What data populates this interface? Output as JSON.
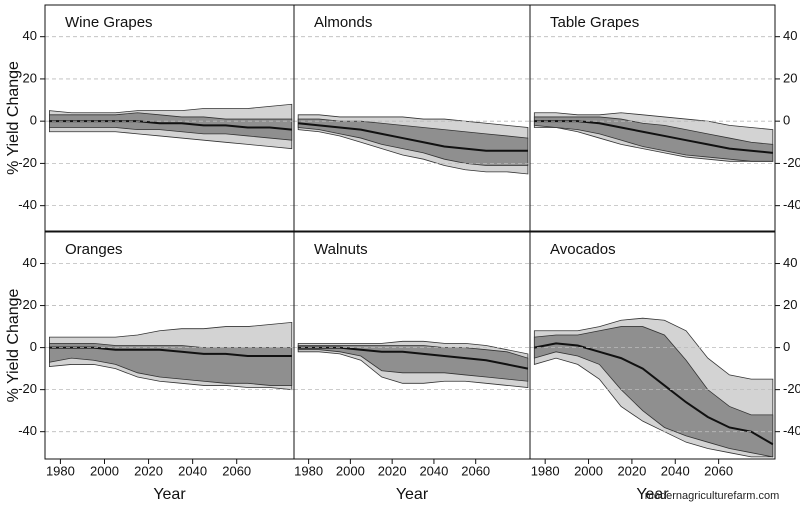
{
  "watermark": "modernagriculturefarm.com",
  "chart_data": [
    {
      "type": "line",
      "title": "Wine Grapes",
      "ylabel": "% Yield Change",
      "x": [
        1975,
        1985,
        1995,
        2005,
        2015,
        2025,
        2035,
        2045,
        2055,
        2065,
        2075,
        2085
      ],
      "xlim": [
        1973,
        2086
      ],
      "ylim": [
        -52,
        55
      ],
      "yticks": [
        -40,
        -20,
        0,
        20,
        40
      ],
      "grid": true,
      "bands": [
        {
          "color": "#d3d3d3",
          "lower": [
            -5,
            -5,
            -5,
            -5,
            -6,
            -7,
            -8,
            -9,
            -10,
            -11,
            -12,
            -13
          ],
          "upper": [
            5,
            4,
            4,
            4,
            5,
            5,
            5,
            6,
            6,
            6,
            7,
            8
          ]
        },
        {
          "color": "#8f8f8f",
          "lower": [
            -3,
            -3,
            -3,
            -3,
            -4,
            -4,
            -5,
            -6,
            -6,
            -7,
            -8,
            -9
          ],
          "upper": [
            3,
            3,
            3,
            3,
            4,
            3,
            2,
            2,
            1,
            1,
            1,
            1
          ]
        }
      ],
      "series": [
        {
          "color": "#111111",
          "values": [
            0,
            0,
            0,
            0,
            0,
            -1,
            -1,
            -2,
            -2,
            -3,
            -3,
            -4
          ]
        }
      ]
    },
    {
      "type": "line",
      "title": "Almonds",
      "x": [
        1975,
        1985,
        1995,
        2005,
        2015,
        2025,
        2035,
        2045,
        2055,
        2065,
        2075,
        2085
      ],
      "xlim": [
        1973,
        2086
      ],
      "ylim": [
        -52,
        55
      ],
      "yticks": [
        -40,
        -20,
        0,
        20,
        40
      ],
      "grid": true,
      "bands": [
        {
          "color": "#d3d3d3",
          "lower": [
            -4,
            -5,
            -7,
            -10,
            -13,
            -16,
            -18,
            -21,
            -23,
            -24,
            -24,
            -25
          ],
          "upper": [
            3,
            3,
            2,
            2,
            2,
            2,
            1,
            1,
            0,
            -1,
            -2,
            -3
          ]
        },
        {
          "color": "#8f8f8f",
          "lower": [
            -3,
            -4,
            -6,
            -8,
            -11,
            -13,
            -15,
            -18,
            -20,
            -21,
            -21,
            -21
          ],
          "upper": [
            1,
            1,
            0,
            0,
            -1,
            -2,
            -3,
            -4,
            -5,
            -6,
            -7,
            -8
          ]
        }
      ],
      "series": [
        {
          "color": "#111111",
          "values": [
            -1,
            -2,
            -3,
            -4,
            -6,
            -8,
            -10,
            -12,
            -13,
            -14,
            -14,
            -14
          ]
        }
      ]
    },
    {
      "type": "line",
      "title": "Table Grapes",
      "x": [
        1975,
        1985,
        1995,
        2005,
        2015,
        2025,
        2035,
        2045,
        2055,
        2065,
        2075,
        2085
      ],
      "xlim": [
        1973,
        2086
      ],
      "ylim": [
        -52,
        55
      ],
      "yticks": [
        -40,
        -20,
        0,
        20,
        40
      ],
      "grid": true,
      "bands": [
        {
          "color": "#d3d3d3",
          "lower": [
            -3,
            -3,
            -5,
            -8,
            -11,
            -13,
            -15,
            -17,
            -18,
            -19,
            -19,
            -19
          ],
          "upper": [
            4,
            4,
            3,
            3,
            4,
            3,
            2,
            1,
            0,
            -2,
            -3,
            -4
          ]
        },
        {
          "color": "#8f8f8f",
          "lower": [
            -2,
            -3,
            -4,
            -6,
            -9,
            -12,
            -14,
            -16,
            -17,
            -18,
            -19,
            -19
          ],
          "upper": [
            2,
            2,
            2,
            2,
            1,
            -1,
            -2,
            -4,
            -6,
            -8,
            -10,
            -11
          ]
        }
      ],
      "series": [
        {
          "color": "#111111",
          "values": [
            0,
            0,
            0,
            -1,
            -3,
            -5,
            -7,
            -9,
            -11,
            -13,
            -14,
            -15
          ]
        }
      ]
    },
    {
      "type": "line",
      "title": "Oranges",
      "ylabel": "% Yield Change",
      "xlabel": "Year",
      "x": [
        1975,
        1985,
        1995,
        2005,
        2015,
        2025,
        2035,
        2045,
        2055,
        2065,
        2075,
        2085
      ],
      "xlim": [
        1973,
        2086
      ],
      "xticks": [
        1980,
        2000,
        2020,
        2040,
        2060
      ],
      "ylim": [
        -53,
        55
      ],
      "yticks": [
        -40,
        -20,
        0,
        20,
        40
      ],
      "grid": true,
      "bands": [
        {
          "color": "#d3d3d3",
          "lower": [
            -9,
            -8,
            -8,
            -10,
            -14,
            -16,
            -17,
            -18,
            -18,
            -19,
            -19,
            -20
          ],
          "upper": [
            5,
            5,
            5,
            5,
            6,
            8,
            9,
            9,
            10,
            10,
            11,
            12
          ]
        },
        {
          "color": "#8f8f8f",
          "lower": [
            -7,
            -5,
            -6,
            -8,
            -12,
            -14,
            -15,
            -16,
            -17,
            -17,
            -18,
            -18
          ],
          "upper": [
            2,
            2,
            2,
            1,
            1,
            1,
            1,
            0,
            0,
            0,
            0,
            0
          ]
        }
      ],
      "series": [
        {
          "color": "#111111",
          "values": [
            0,
            0,
            0,
            -1,
            -1,
            -1,
            -2,
            -3,
            -3,
            -4,
            -4,
            -4
          ]
        }
      ]
    },
    {
      "type": "line",
      "title": "Walnuts",
      "xlabel": "Year",
      "x": [
        1975,
        1985,
        1995,
        2005,
        2015,
        2025,
        2035,
        2045,
        2055,
        2065,
        2075,
        2085
      ],
      "xlim": [
        1973,
        2086
      ],
      "xticks": [
        1980,
        2000,
        2020,
        2040,
        2060
      ],
      "ylim": [
        -53,
        55
      ],
      "yticks": [
        -40,
        -20,
        0,
        20,
        40
      ],
      "grid": true,
      "bands": [
        {
          "color": "#d3d3d3",
          "lower": [
            -2,
            -2,
            -3,
            -6,
            -14,
            -17,
            -17,
            -16,
            -16,
            -17,
            -18,
            -19
          ],
          "upper": [
            2,
            2,
            2,
            2,
            2,
            3,
            3,
            2,
            2,
            1,
            -1,
            -3
          ]
        },
        {
          "color": "#8f8f8f",
          "lower": [
            -1,
            -1,
            -2,
            -4,
            -11,
            -12,
            -12,
            -12,
            -13,
            -14,
            -15,
            -16
          ],
          "upper": [
            1,
            1,
            1,
            1,
            1,
            1,
            1,
            0,
            0,
            -1,
            -2,
            -5
          ]
        }
      ],
      "series": [
        {
          "color": "#111111",
          "values": [
            0,
            0,
            0,
            -1,
            -2,
            -2,
            -3,
            -4,
            -5,
            -6,
            -8,
            -10
          ]
        }
      ]
    },
    {
      "type": "line",
      "title": "Avocados",
      "xlabel": "Year",
      "x": [
        1975,
        1985,
        1995,
        2005,
        2015,
        2025,
        2035,
        2045,
        2055,
        2065,
        2075,
        2085
      ],
      "xlim": [
        1973,
        2086
      ],
      "xticks": [
        1980,
        2000,
        2020,
        2040,
        2060
      ],
      "ylim": [
        -53,
        55
      ],
      "yticks": [
        -40,
        -20,
        0,
        20,
        40
      ],
      "grid": true,
      "bands": [
        {
          "color": "#d3d3d3",
          "lower": [
            -8,
            -5,
            -8,
            -15,
            -28,
            -35,
            -40,
            -45,
            -48,
            -50,
            -52,
            -52
          ],
          "upper": [
            8,
            8,
            8,
            10,
            13,
            14,
            13,
            8,
            -5,
            -13,
            -15,
            -15
          ]
        },
        {
          "color": "#8f8f8f",
          "lower": [
            -5,
            -2,
            -4,
            -8,
            -20,
            -30,
            -38,
            -42,
            -45,
            -48,
            -50,
            -52
          ],
          "upper": [
            5,
            6,
            6,
            8,
            10,
            10,
            6,
            -6,
            -20,
            -28,
            -32,
            -32
          ]
        }
      ],
      "series": [
        {
          "color": "#111111",
          "values": [
            0,
            2,
            1,
            -2,
            -5,
            -10,
            -18,
            -26,
            -33,
            -38,
            -40,
            -46
          ]
        }
      ]
    }
  ]
}
